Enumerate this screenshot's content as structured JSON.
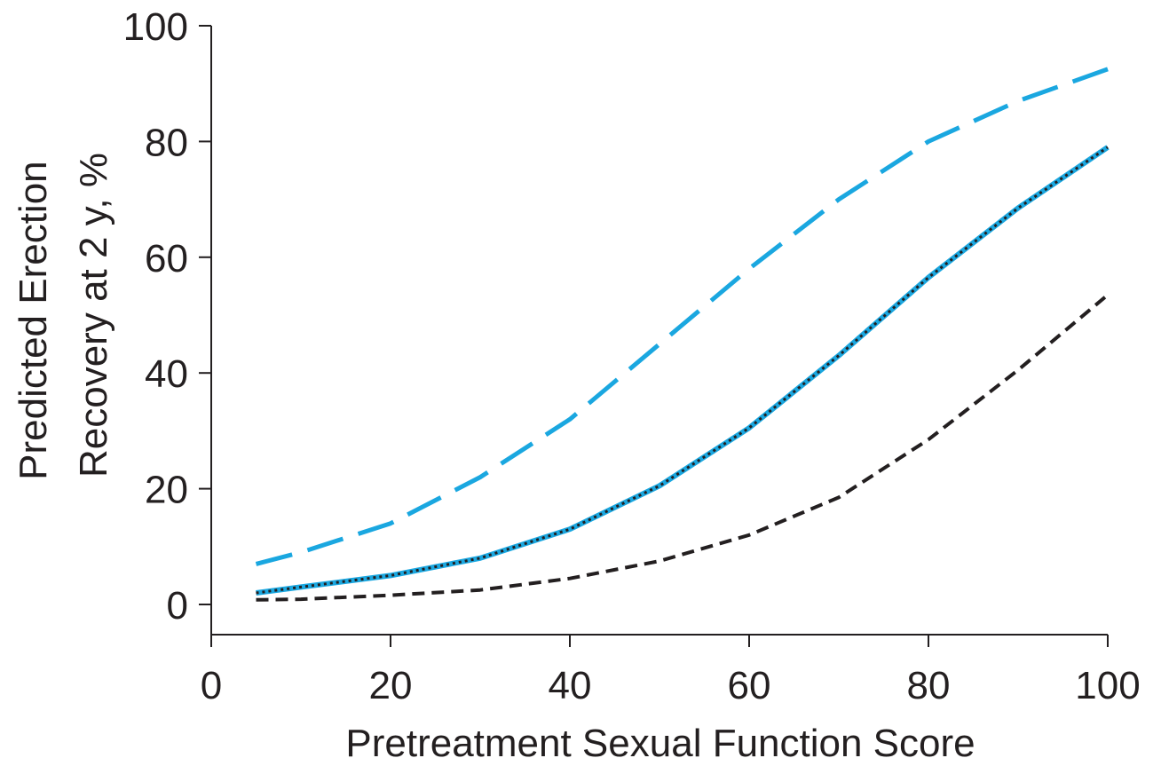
{
  "chart_data": {
    "type": "line",
    "title": "",
    "xlabel": "Pretreatment Sexual Function Score",
    "ylabel_lines": [
      "Predicted Erection",
      "Recovery at 2 y, %"
    ],
    "xlim": [
      0,
      100
    ],
    "ylim": [
      0,
      100
    ],
    "x_ticks": [
      0,
      20,
      40,
      60,
      80,
      100
    ],
    "y_ticks": [
      0,
      20,
      40,
      60,
      80,
      100
    ],
    "grid": false,
    "legend": "none",
    "x": [
      5,
      10,
      20,
      30,
      40,
      50,
      60,
      70,
      80,
      90,
      100
    ],
    "series": [
      {
        "style": "long-dash",
        "color": "#1aa7e0",
        "values": [
          7,
          9,
          14,
          22,
          32,
          45,
          58,
          70,
          80,
          87,
          92.5
        ]
      },
      {
        "style": "solid-dotted",
        "color": "#1aa7e0",
        "overlay_color": "#231f20",
        "values": [
          2,
          3,
          5,
          8,
          13,
          20.5,
          30.5,
          43,
          56.5,
          68.5,
          79
        ]
      },
      {
        "style": "short-dash",
        "color": "#231f20",
        "values": [
          0.8,
          0.9,
          1.6,
          2.5,
          4.5,
          7.5,
          12,
          18.5,
          28.5,
          40.5,
          53.5
        ]
      }
    ]
  }
}
